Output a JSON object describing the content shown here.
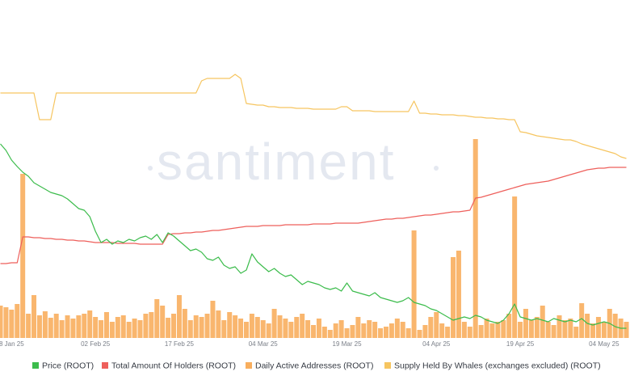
{
  "chart_data": {
    "type": "combo",
    "watermark": "santiment",
    "categories": [
      null,
      null,
      "8 Jan 25",
      null,
      null,
      null,
      null,
      null,
      null,
      null,
      null,
      null,
      null,
      null,
      null,
      null,
      null,
      "02 Feb 25",
      null,
      null,
      null,
      null,
      null,
      null,
      null,
      null,
      null,
      null,
      null,
      null,
      null,
      null,
      "17 Feb 25",
      null,
      null,
      null,
      null,
      null,
      null,
      null,
      null,
      null,
      null,
      null,
      null,
      null,
      null,
      "04 Mar 25",
      null,
      null,
      null,
      null,
      null,
      null,
      null,
      null,
      null,
      null,
      null,
      null,
      null,
      null,
      "19 Mar 25",
      null,
      null,
      null,
      null,
      null,
      null,
      null,
      null,
      null,
      null,
      null,
      null,
      null,
      null,
      null,
      "04 Apr 25",
      null,
      null,
      null,
      null,
      null,
      null,
      null,
      null,
      null,
      null,
      null,
      null,
      null,
      null,
      "19 Apr 25",
      null,
      null,
      null,
      null,
      null,
      null,
      null,
      null,
      null,
      null,
      null,
      null,
      null,
      null,
      "04 May 25",
      null,
      null,
      null,
      null
    ],
    "series": [
      {
        "name": "Daily Active Addresses (ROOT)",
        "type": "bar",
        "color": "#f8ae5e",
        "values": [
          40,
          38,
          35,
          42,
          203,
          30,
          53,
          28,
          33,
          25,
          30,
          22,
          28,
          24,
          28,
          30,
          34,
          26,
          22,
          32,
          20,
          26,
          28,
          20,
          24,
          22,
          30,
          32,
          48,
          40,
          25,
          30,
          53,
          36,
          22,
          28,
          26,
          30,
          46,
          34,
          22,
          32,
          28,
          24,
          20,
          30,
          26,
          22,
          18,
          36,
          28,
          24,
          20,
          26,
          30,
          22,
          16,
          24,
          14,
          10,
          18,
          22,
          12,
          16,
          26,
          18,
          22,
          20,
          12,
          14,
          18,
          24,
          20,
          12,
          133,
          10,
          16,
          26,
          32,
          18,
          14,
          100,
          108,
          20,
          14,
          246,
          16,
          24,
          18,
          20,
          22,
          30,
          175,
          20,
          36,
          22,
          26,
          40,
          20,
          16,
          28,
          22,
          24,
          14,
          43,
          30,
          18,
          26,
          20,
          36,
          30,
          24,
          20
        ]
      },
      {
        "name": "Total Amount Of Holders (ROOT)",
        "type": "line",
        "color": "#ee5f5b",
        "values": [
          92,
          92,
          93,
          93,
          125,
          125,
          124,
          124,
          123,
          123,
          122,
          122,
          121,
          121,
          120,
          120,
          119,
          118,
          118,
          118,
          118,
          117,
          117,
          117,
          117,
          116,
          116,
          116,
          116,
          116,
          128,
          129,
          129,
          130,
          130,
          131,
          131,
          132,
          133,
          133,
          134,
          135,
          136,
          137,
          138,
          138,
          138,
          139,
          139,
          139,
          139,
          140,
          140,
          140,
          140,
          140,
          141,
          141,
          141,
          141,
          142,
          142,
          142,
          142,
          142,
          143,
          144,
          145,
          146,
          147,
          147,
          148,
          148,
          149,
          150,
          151,
          152,
          152,
          153,
          154,
          155,
          156,
          156,
          157,
          158,
          173,
          174,
          176,
          178,
          180,
          182,
          184,
          186,
          188,
          190,
          191,
          192,
          193,
          194,
          196,
          198,
          200,
          202,
          204,
          206,
          208,
          209,
          210,
          210,
          211,
          211,
          211,
          211
        ]
      },
      {
        "name": "Supply Held By Whales (exchanges excluded) (ROOT)",
        "type": "line",
        "color": "#f6c560",
        "values": [
          303,
          303,
          303,
          303,
          303,
          303,
          303,
          270,
          270,
          270,
          303,
          303,
          303,
          303,
          303,
          303,
          303,
          303,
          303,
          303,
          303,
          303,
          303,
          303,
          303,
          303,
          303,
          303,
          303,
          303,
          303,
          303,
          303,
          303,
          303,
          303,
          318,
          321,
          321,
          321,
          321,
          321,
          326,
          321,
          290,
          289,
          288,
          288,
          286,
          286,
          285,
          285,
          285,
          284,
          284,
          284,
          283,
          283,
          283,
          283,
          283,
          286,
          286,
          281,
          281,
          281,
          281,
          280,
          280,
          280,
          280,
          280,
          280,
          280,
          293,
          278,
          278,
          277,
          277,
          276,
          276,
          276,
          275,
          275,
          274,
          273,
          273,
          272,
          272,
          271,
          271,
          270,
          270,
          255,
          254,
          252,
          250,
          249,
          248,
          247,
          246,
          245,
          245,
          243,
          240,
          238,
          236,
          234,
          232,
          230,
          228,
          224,
          222
        ]
      },
      {
        "name": "Price (ROOT)",
        "type": "line",
        "color": "#3cbc4c",
        "values": [
          240,
          232,
          220,
          212,
          205,
          200,
          192,
          188,
          184,
          180,
          178,
          176,
          172,
          166,
          160,
          158,
          150,
          132,
          118,
          122,
          116,
          120,
          118,
          122,
          120,
          124,
          126,
          122,
          128,
          118,
          130,
          126,
          120,
          114,
          108,
          110,
          106,
          98,
          96,
          100,
          90,
          86,
          88,
          80,
          84,
          104,
          94,
          88,
          82,
          86,
          80,
          76,
          78,
          72,
          66,
          70,
          68,
          66,
          62,
          60,
          62,
          58,
          68,
          58,
          56,
          54,
          52,
          56,
          50,
          48,
          46,
          44,
          46,
          50,
          44,
          42,
          40,
          36,
          34,
          30,
          26,
          22,
          24,
          26,
          24,
          28,
          26,
          22,
          20,
          18,
          22,
          30,
          42,
          26,
          24,
          22,
          24,
          22,
          20,
          24,
          22,
          20,
          22,
          20,
          24,
          18,
          16,
          18,
          20,
          18,
          14,
          12,
          12
        ]
      }
    ]
  }
}
